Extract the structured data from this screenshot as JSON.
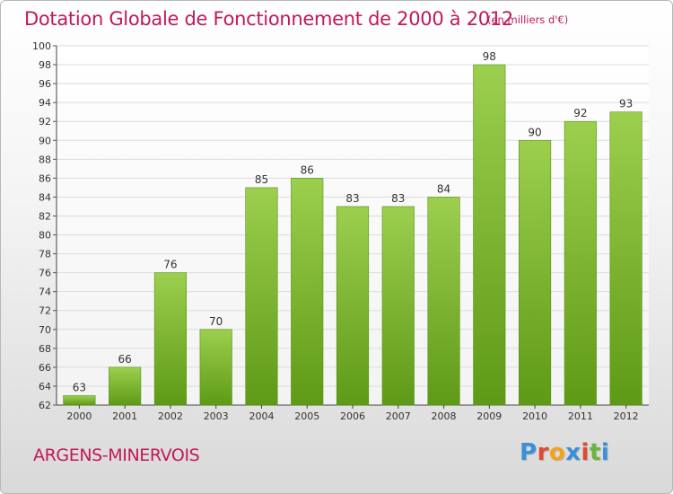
{
  "header": {
    "title": "Dotation Globale de Fonctionnement de 2000 à 2012",
    "unit": "(en milliers d'€)"
  },
  "footer": {
    "commune": "ARGENS-MINERVOIS",
    "logo_text": "Proxiti",
    "logo_colors": [
      "#3a8fd8",
      "#e04a2f",
      "#f0a418",
      "#3a8fd8",
      "#e04a2f",
      "#6cb33f",
      "#3a8fd8"
    ]
  },
  "chart_data": {
    "type": "bar",
    "categories": [
      "2000",
      "2001",
      "2002",
      "2003",
      "2004",
      "2005",
      "2006",
      "2007",
      "2008",
      "2009",
      "2010",
      "2011",
      "2012"
    ],
    "values": [
      63,
      66,
      76,
      70,
      85,
      86,
      83,
      83,
      84,
      98,
      90,
      92,
      93
    ],
    "title": "Dotation Globale de Fonctionnement de 2000 à 2012",
    "subtitle": "(en milliers d'€)",
    "xlabel": "",
    "ylabel": "",
    "ylim": [
      62,
      100
    ],
    "yticks": [
      62,
      64,
      66,
      68,
      70,
      72,
      74,
      76,
      78,
      80,
      82,
      84,
      86,
      88,
      90,
      92,
      94,
      96,
      98,
      100
    ],
    "grid": true,
    "bar_color_top": "#9ccf4e",
    "bar_color_bottom": "#5e9a16",
    "data_labels": true
  }
}
